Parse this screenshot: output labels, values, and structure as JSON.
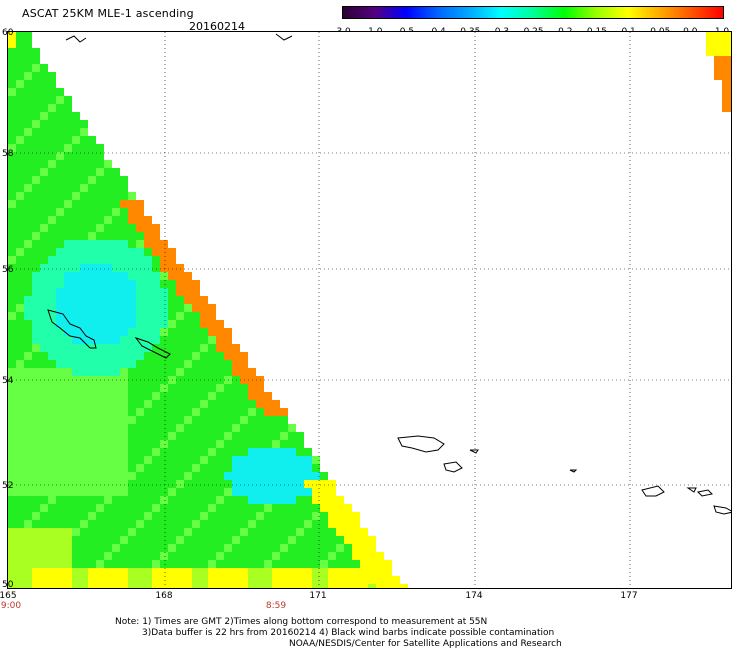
{
  "header": {
    "title": "ASCAT 25KM MLE-1 ascending",
    "date": "20160214"
  },
  "colorbar": {
    "ticks": [
      "-3.0",
      "-1.0",
      "-0.5",
      "-0.4",
      "-0.35",
      "-0.3",
      "-0.25",
      "-0.2",
      "-0.15",
      "-0.1",
      "-0.05",
      "0.0",
      "1.0"
    ],
    "colors": [
      "#2b0033",
      "#55007f",
      "#0000ff",
      "#0066ff",
      "#00aaff",
      "#00ffff",
      "#00ff99",
      "#00ff00",
      "#99ff00",
      "#ffff00",
      "#ffaa00",
      "#ff5500",
      "#ff0000"
    ]
  },
  "axes": {
    "lat_labels": [
      "60",
      "58",
      "56",
      "54",
      "52",
      "50"
    ],
    "lon_labels": [
      "165",
      "168",
      "171",
      "174",
      "177"
    ],
    "time_labels": [
      "9:00",
      "8:59"
    ]
  },
  "palette": {
    "green": "#22ee22",
    "light_green": "#66ff44",
    "yellow_green": "#aaff22",
    "cyan": "#11eeee",
    "cyan_green": "#22ffaa",
    "yellow": "#ffff00",
    "orange": "#ff8800"
  },
  "footer": {
    "line1": "Note: 1) Times are GMT 2)Times along bottom correspond to measurement at 55N",
    "line2": "3)Data buffer is 22 hrs from 20160214 4) Black wind barbs indicate possible contamination",
    "line3": "NOAA/NESDIS/Center for Satellite Applications and Research"
  }
}
